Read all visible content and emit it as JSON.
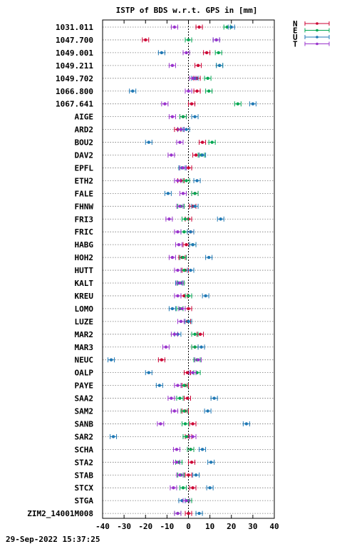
{
  "chart_data": {
    "type": "scatter",
    "title": "ISTP of BDS w.r.t. GPS in [mm]",
    "timestamp": "29-Sep-2022 15:37:25",
    "xlim": [
      -40,
      40
    ],
    "xticks": [
      -40,
      -30,
      -20,
      -10,
      0,
      10,
      20,
      30,
      40
    ],
    "xtick_labels": [
      "-40",
      "-30",
      "-20",
      "-10",
      "0",
      "10",
      "20",
      "30",
      "40"
    ],
    "grid": "horizontal dotted",
    "legend_position": "top-right outside",
    "categories": [
      "1031.011",
      "1047.700",
      "1049.001",
      "1049.211",
      "1049.702",
      "1066.800",
      "1067.641",
      "AIGE",
      "ARD2",
      "BOU2",
      "DAV2",
      "EPFL",
      "ETH2",
      "FALE",
      "FHNW",
      "FRI3",
      "FRIC",
      "HABG",
      "HOH2",
      "HUTT",
      "KALT",
      "KREU",
      "LOMO",
      "LUZE",
      "MAR2",
      "MAR3",
      "NEUC",
      "OALP",
      "PAYE",
      "SAA2",
      "SAM2",
      "SANB",
      "SAR2",
      "SCHA",
      "STA2",
      "STAB",
      "STCX",
      "STGA",
      "ZIM2_14001M008"
    ],
    "series": [
      {
        "name": "N",
        "color": "#cc0033",
        "values": [
          5,
          -20,
          8.5,
          4.5,
          4,
          4,
          1.5,
          -2.5,
          -5,
          6.5,
          3.5,
          0,
          -3.5,
          3,
          2,
          0,
          1,
          -1,
          -3,
          -1.5,
          -4,
          -2,
          0,
          -0.5,
          5.5,
          3,
          -12.5,
          -0.5,
          -1.5,
          -0.5,
          -1.5,
          2,
          0,
          1,
          1.5,
          0,
          2,
          0,
          0
        ],
        "errors": [
          1,
          1,
          1,
          1,
          1,
          1,
          1,
          1,
          1,
          1,
          1,
          1,
          1,
          1,
          1,
          1,
          1,
          1,
          1,
          1,
          1,
          1,
          1,
          1,
          1,
          1,
          1,
          1,
          1,
          1,
          1,
          1,
          1,
          1,
          1,
          1,
          1,
          1,
          1
        ]
      },
      {
        "name": "E",
        "color": "#00a651",
        "values": [
          18,
          0,
          14,
          14.5,
          9,
          9.5,
          23,
          -2.5,
          -3.5,
          11,
          6,
          -3,
          -1,
          3,
          -3.5,
          -1.5,
          -2,
          2,
          -2.5,
          -2,
          -3.5,
          0,
          -4,
          0,
          3,
          3,
          4,
          4,
          -2,
          -4,
          -2,
          -1.5,
          -1,
          1,
          -4.5,
          -3.5,
          -2.5,
          0,
          -5
        ]
      },
      {
        "name": "U",
        "color": "#1f78b4",
        "values": [
          20,
          13,
          -12.5,
          14.5,
          3,
          -26,
          30,
          3,
          -1,
          -18.5,
          6.5,
          -3,
          4,
          -9.5,
          3,
          15,
          1,
          2,
          9.5,
          1,
          -4.5,
          8,
          -7.5,
          0,
          -5,
          6,
          -36,
          -18.5,
          -13.5,
          12,
          9,
          27,
          -35,
          6.5,
          10.5,
          3.5,
          10,
          -3,
          5
        ]
      },
      {
        "name": "T",
        "color": "#9933cc",
        "values": [
          -6.5,
          13,
          -1,
          -7.5,
          2,
          0,
          -11,
          -7.5,
          -3.5,
          -4,
          -8,
          -2.5,
          -5,
          -2.5,
          -4,
          -9,
          -5,
          -4.5,
          -7.5,
          -5,
          -4,
          -5,
          -3,
          -3.5,
          -6.5,
          -10.5,
          4.5,
          2,
          -5,
          -8,
          -6.5,
          -13,
          2,
          -5.5,
          -5.5,
          -4,
          -7,
          -1,
          -5
        ]
      }
    ]
  }
}
